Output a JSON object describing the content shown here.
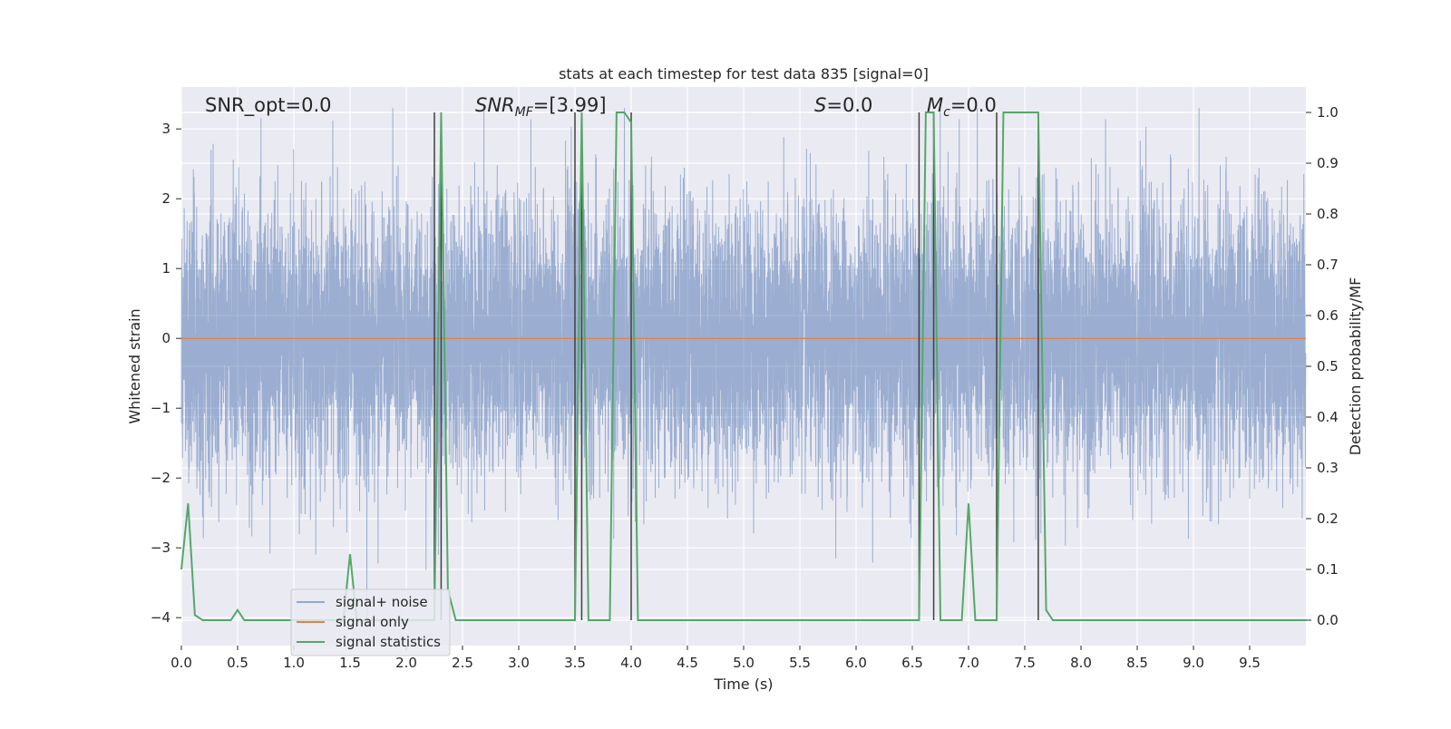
{
  "chart_data": {
    "type": "line",
    "title": "stats at each timestep for test data 835 [signal=0]",
    "xlabel": "Time (s)",
    "ylabel_left": "Whitened strain",
    "ylabel_right": "Detection probability/MF",
    "xlim": [
      0.0,
      10.0
    ],
    "ylim_left": [
      -4.4,
      3.6
    ],
    "ylim_right": [
      -0.05,
      1.05
    ],
    "x_ticks": [
      0.0,
      0.5,
      1.0,
      1.5,
      2.0,
      2.5,
      3.0,
      3.5,
      4.0,
      4.5,
      5.0,
      5.5,
      6.0,
      6.5,
      7.0,
      7.5,
      8.0,
      8.5,
      9.0,
      9.5
    ],
    "x_tick_labels": [
      "0.0",
      "0.5",
      "1.0",
      "1.5",
      "2.0",
      "2.5",
      "3.0",
      "3.5",
      "4.0",
      "4.5",
      "5.0",
      "5.5",
      "6.0",
      "6.5",
      "7.0",
      "7.5",
      "8.0",
      "8.5",
      "9.0",
      "9.5"
    ],
    "y_left_ticks": [
      3,
      2,
      1,
      0,
      -1,
      -2,
      -3,
      -4
    ],
    "y_left_tick_labels": [
      "3",
      "2",
      "1",
      "0",
      "−1",
      "−2",
      "−3",
      "−4"
    ],
    "y_right_ticks": [
      1.0,
      0.9,
      0.8,
      0.7,
      0.6,
      0.5,
      0.4,
      0.3,
      0.2,
      0.1,
      0.0
    ],
    "y_right_tick_labels": [
      "1.0",
      "0.9",
      "0.8",
      "0.7",
      "0.6",
      "0.5",
      "0.4",
      "0.3",
      "0.2",
      "0.1",
      "0.0"
    ],
    "grid": true,
    "legend_position": "lower left",
    "background": "#eaeaf2",
    "annotations": {
      "snr_opt": "SNR_opt=0.0",
      "snr_mf_name": "SNR",
      "snr_mf_sub": "MF",
      "snr_mf_value": "=[3.99]",
      "s_name": "S",
      "s_value": "=0.0",
      "mc_name": "M",
      "mc_sub": "c",
      "mc_value": "=0.0"
    },
    "series": [
      {
        "name": "signal+ noise",
        "axis": "left",
        "color": "#4c72b0",
        "alpha": 0.5,
        "style": "dense random noise, approx. std 1.0",
        "sample_rate_hz": 1024,
        "approx_range": [
          -4.0,
          3.3
        ]
      },
      {
        "name": "signal only",
        "axis": "left",
        "color": "#dd8452",
        "x": [
          0.0,
          10.0
        ],
        "y": [
          0.0,
          0.0
        ]
      },
      {
        "name": "signal statistics",
        "axis": "right",
        "color": "#55a868",
        "x": [
          0.0,
          0.06,
          0.12,
          0.19,
          0.44,
          0.5,
          0.56,
          1.44,
          1.5,
          1.56,
          2.25,
          2.31,
          2.37,
          2.44,
          3.5,
          3.56,
          3.62,
          3.69,
          3.81,
          3.87,
          3.94,
          4.0,
          4.06,
          4.12,
          6.56,
          6.62,
          6.69,
          6.75,
          6.94,
          7.0,
          7.06,
          7.25,
          7.31,
          7.37,
          7.62,
          7.69,
          7.75,
          10.0
        ],
        "y": [
          0.1,
          0.23,
          0.01,
          0.0,
          0.0,
          0.02,
          0.0,
          0.0,
          0.13,
          0.0,
          0.0,
          1.0,
          0.06,
          0.0,
          0.0,
          1.0,
          0.0,
          0.0,
          0.0,
          1.0,
          1.0,
          0.98,
          0.0,
          0.0,
          0.0,
          1.0,
          1.0,
          0.0,
          0.0,
          0.23,
          0.0,
          0.0,
          1.0,
          1.0,
          1.0,
          0.02,
          0.0,
          0.0
        ]
      }
    ],
    "vertical_markers": {
      "color": "#404040",
      "x": [
        2.25,
        2.31,
        3.5,
        3.56,
        4.0,
        6.56,
        6.69,
        7.25,
        7.62
      ],
      "y_range_right": [
        0.0,
        1.0
      ]
    }
  }
}
